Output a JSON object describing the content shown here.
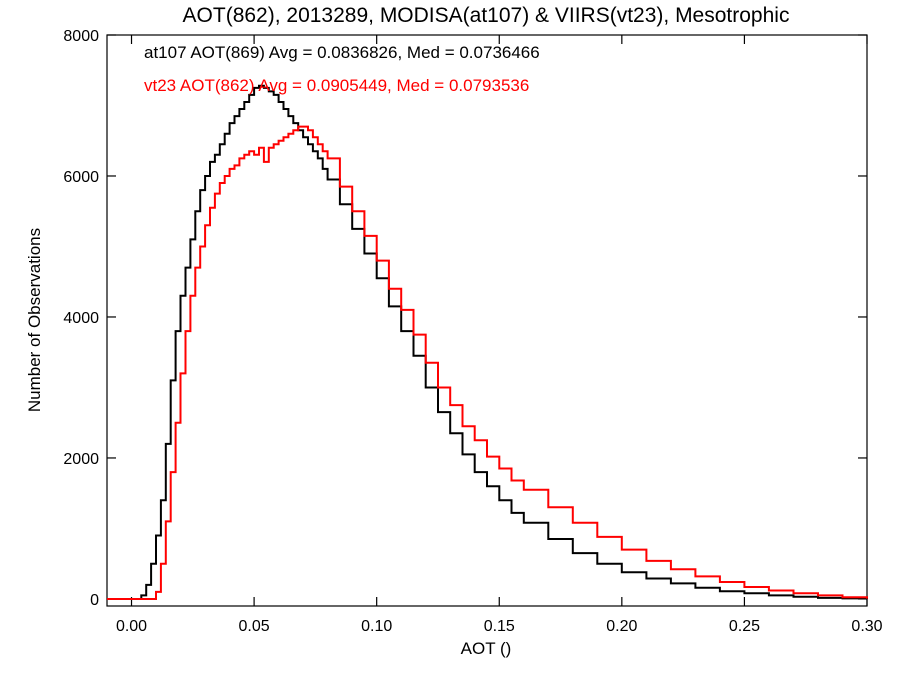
{
  "chart_data": {
    "type": "line",
    "title": "AOT(862), 2013289, MODISA(at107) & VIIRS(vt23), Mesotrophic",
    "xlabel": "AOT ()",
    "ylabel": "Number of Observations",
    "xlim": [
      -0.01,
      0.3
    ],
    "ylim": [
      -100,
      8000
    ],
    "x_ticks": [
      0.0,
      0.05,
      0.1,
      0.15,
      0.2,
      0.25,
      0.3
    ],
    "x_tick_labels": [
      "0.00",
      "0.05",
      "0.10",
      "0.15",
      "0.20",
      "0.25",
      "0.30"
    ],
    "y_ticks": [
      0,
      2000,
      4000,
      6000,
      8000
    ],
    "y_tick_labels": [
      "0",
      "2000",
      "4000",
      "6000",
      "8000"
    ],
    "grid": false,
    "step": true,
    "series": [
      {
        "name": "at107",
        "color": "#000000",
        "annotation": "at107 AOT(869) Avg = 0.0836826, Med = 0.0736466",
        "x": [
          -0.01,
          0.004,
          0.006,
          0.008,
          0.01,
          0.012,
          0.014,
          0.016,
          0.018,
          0.02,
          0.022,
          0.024,
          0.026,
          0.028,
          0.03,
          0.032,
          0.034,
          0.036,
          0.038,
          0.04,
          0.042,
          0.044,
          0.046,
          0.048,
          0.05,
          0.052,
          0.054,
          0.056,
          0.058,
          0.06,
          0.062,
          0.064,
          0.066,
          0.068,
          0.07,
          0.072,
          0.074,
          0.076,
          0.078,
          0.08,
          0.085,
          0.09,
          0.095,
          0.1,
          0.105,
          0.11,
          0.115,
          0.12,
          0.125,
          0.13,
          0.135,
          0.14,
          0.145,
          0.15,
          0.155,
          0.16,
          0.17,
          0.18,
          0.19,
          0.2,
          0.21,
          0.22,
          0.23,
          0.24,
          0.25,
          0.26,
          0.27,
          0.28,
          0.29,
          0.3
        ],
        "y": [
          0,
          50,
          200,
          500,
          900,
          1400,
          2200,
          3100,
          3800,
          4300,
          4700,
          5100,
          5500,
          5800,
          6000,
          6200,
          6300,
          6450,
          6600,
          6750,
          6850,
          6950,
          7050,
          7150,
          7250,
          7280,
          7250,
          7200,
          7150,
          7050,
          6950,
          6850,
          6750,
          6650,
          6550,
          6450,
          6350,
          6250,
          6100,
          5950,
          5600,
          5250,
          4900,
          4550,
          4150,
          3800,
          3450,
          3000,
          2650,
          2350,
          2050,
          1800,
          1600,
          1400,
          1220,
          1080,
          850,
          650,
          500,
          380,
          290,
          220,
          160,
          110,
          80,
          50,
          30,
          15,
          8,
          0
        ]
      },
      {
        "name": "vt23",
        "color": "#ff0000",
        "annotation": "vt23 AOT(862) Avg = 0.0905449, Med = 0.0793536",
        "x": [
          -0.01,
          0.01,
          0.012,
          0.014,
          0.016,
          0.018,
          0.02,
          0.022,
          0.024,
          0.026,
          0.028,
          0.03,
          0.032,
          0.034,
          0.036,
          0.038,
          0.04,
          0.042,
          0.044,
          0.046,
          0.048,
          0.05,
          0.052,
          0.054,
          0.056,
          0.058,
          0.06,
          0.062,
          0.064,
          0.066,
          0.068,
          0.07,
          0.072,
          0.074,
          0.076,
          0.078,
          0.08,
          0.085,
          0.09,
          0.095,
          0.1,
          0.105,
          0.11,
          0.115,
          0.12,
          0.125,
          0.13,
          0.135,
          0.14,
          0.145,
          0.15,
          0.155,
          0.16,
          0.17,
          0.18,
          0.19,
          0.2,
          0.21,
          0.22,
          0.23,
          0.24,
          0.25,
          0.26,
          0.27,
          0.28,
          0.29,
          0.3
        ],
        "y": [
          0,
          100,
          500,
          1100,
          1800,
          2500,
          3200,
          3800,
          4300,
          4700,
          5000,
          5300,
          5550,
          5750,
          5900,
          6000,
          6100,
          6150,
          6250,
          6300,
          6350,
          6300,
          6400,
          6200,
          6400,
          6450,
          6500,
          6550,
          6600,
          6650,
          6700,
          6700,
          6650,
          6550,
          6450,
          6350,
          6250,
          5850,
          5500,
          5150,
          4800,
          4400,
          4100,
          3750,
          3350,
          3000,
          2750,
          2450,
          2250,
          2020,
          1850,
          1680,
          1550,
          1300,
          1080,
          880,
          700,
          540,
          420,
          320,
          240,
          170,
          120,
          80,
          50,
          25,
          5
        ]
      }
    ]
  }
}
